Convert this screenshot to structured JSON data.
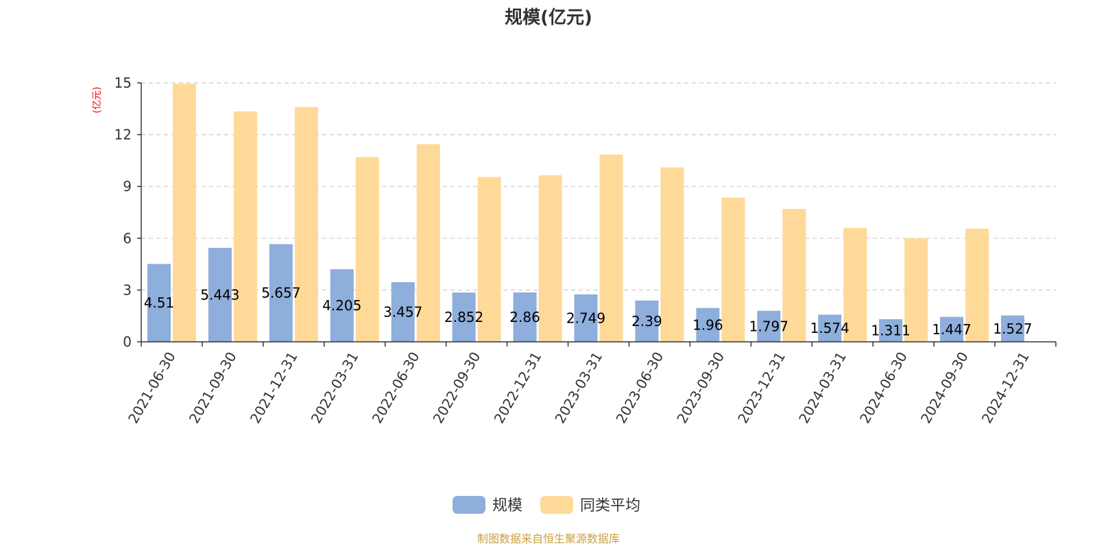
{
  "chart_data": {
    "type": "bar",
    "title": "规模(亿元)",
    "ylabel": "(亿元)",
    "ylim": [
      0,
      15
    ],
    "yticks": [
      0,
      3,
      6,
      9,
      12,
      15
    ],
    "grid": true,
    "legend_position": "bottom",
    "categories": [
      "2021-06-30",
      "2021-09-30",
      "2021-12-31",
      "2022-03-31",
      "2022-06-30",
      "2022-09-30",
      "2022-12-31",
      "2023-03-31",
      "2023-06-30",
      "2023-09-30",
      "2023-12-31",
      "2024-03-31",
      "2024-06-30",
      "2024-09-30",
      "2024-12-31"
    ],
    "series": [
      {
        "name": "规模",
        "color": "#8eaedb",
        "values": [
          4.51,
          5.443,
          5.657,
          4.205,
          3.457,
          2.852,
          2.86,
          2.749,
          2.39,
          1.96,
          1.797,
          1.574,
          1.311,
          1.447,
          1.527
        ],
        "labels": [
          "4.51",
          "5.443",
          "5.657",
          "4.205",
          "3.457",
          "2.852",
          "2.86",
          "2.749",
          "2.39",
          "1.96",
          "1.797",
          "1.574",
          "1.311",
          "1.447",
          "1.527"
        ]
      },
      {
        "name": "同类平均",
        "color": "#ffd998",
        "values": [
          14.95,
          13.35,
          13.6,
          10.7,
          11.45,
          9.55,
          9.65,
          10.85,
          10.1,
          8.35,
          7.7,
          6.6,
          6.0,
          6.55,
          null
        ]
      }
    ]
  },
  "source_text": "制图数据来自恒生聚源数据库",
  "colors": {
    "axis": "#333333",
    "grid": "#cccccc",
    "unit_label": "#ff0000",
    "source": "#c8a040"
  }
}
